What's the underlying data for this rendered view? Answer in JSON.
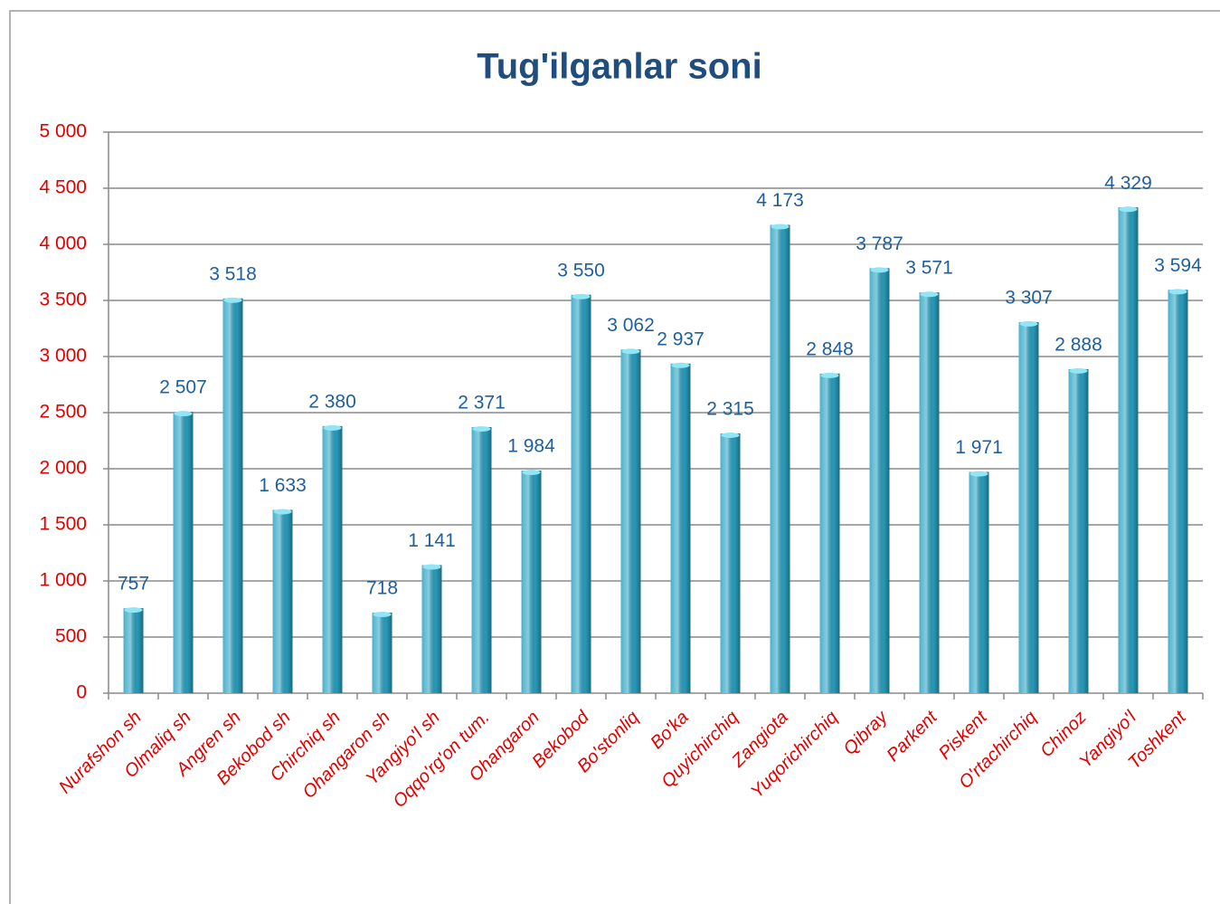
{
  "chart_data": {
    "type": "bar",
    "title": "Tug'ilganlar soni",
    "categories": [
      "Nurafshon sh",
      "Olmaliq sh",
      "Angren sh",
      "Bekobod sh",
      "Chirchiq sh",
      "Ohangaron sh",
      "Yangiyo'l sh",
      "Oqqo'rg'on tum.",
      "Ohangaron",
      "Bekobod",
      "Bo'stonliq",
      "Bo'ka",
      "Quyichirchiq",
      "Zangiota",
      "Yuqorichirchiq",
      "Qibray",
      "Parkent",
      "Piskent",
      "O'rtachirchiq",
      "Chinoz",
      "Yangiyo'l",
      "Toshkent"
    ],
    "values": [
      757,
      2507,
      3518,
      1633,
      2380,
      718,
      1141,
      2371,
      1984,
      3550,
      3062,
      2937,
      2315,
      4173,
      2848,
      3787,
      3571,
      1971,
      3307,
      2888,
      4329,
      3594
    ],
    "value_labels": [
      "757",
      "2 507",
      "3 518",
      "1 633",
      "2 380",
      "718",
      "1 141",
      "2 371",
      "1 984",
      "3 550",
      "3 062",
      "2 937",
      "2 315",
      "4 173",
      "2 848",
      "3 787",
      "3 571",
      "1 971",
      "3 307",
      "2 888",
      "4 329",
      "3 594"
    ],
    "color": "#2aa3c4",
    "ylim": [
      0,
      5000
    ],
    "yticks": [
      0,
      500,
      {
        "value": 1000,
        "label": "1 000"
      },
      {
        "value": 1500,
        "label": "1 500"
      },
      {
        "value": 2000,
        "label": "2 000"
      },
      {
        "value": 2500,
        "label": "2 500"
      },
      {
        "value": 3000,
        "label": "3 000"
      },
      {
        "value": 3500,
        "label": "3 500"
      },
      {
        "value": 4000,
        "label": "4 000"
      },
      {
        "value": 4500,
        "label": "4 500"
      },
      {
        "value": 5000,
        "label": "5 000"
      }
    ],
    "grid": true
  }
}
